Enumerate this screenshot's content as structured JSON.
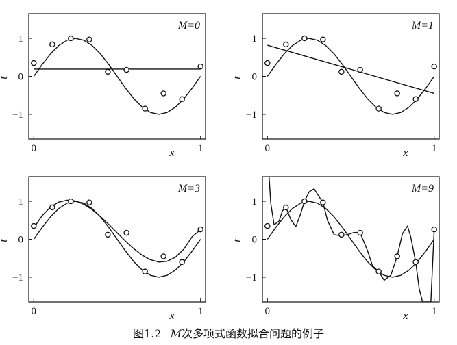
{
  "caption": {
    "label": "图",
    "number": "1.2",
    "var": "M",
    "text": "次多项式函数拟合问题的例子"
  },
  "chart_data": [
    {
      "type": "line",
      "panel_label": "M=0",
      "xlabel": "x",
      "ylabel": "t",
      "xlim": [
        -0.03,
        1.03
      ],
      "ylim": [
        -1.65,
        1.65
      ],
      "xticks": [
        0,
        1
      ],
      "yticks": [
        -1,
        0,
        1
      ],
      "grid": false,
      "points": {
        "x": [
          0,
          0.111,
          0.222,
          0.333,
          0.444,
          0.556,
          0.667,
          0.778,
          0.889,
          1.0
        ],
        "y": [
          0.35,
          0.84,
          1.0,
          0.97,
          0.12,
          0.17,
          -0.85,
          -0.45,
          -0.6,
          0.26
        ]
      },
      "series": [
        {
          "role": "true-curve",
          "x": [
            0,
            0.05,
            0.1,
            0.15,
            0.2,
            0.25,
            0.3,
            0.35,
            0.4,
            0.45,
            0.5,
            0.55,
            0.6,
            0.65,
            0.7,
            0.75,
            0.8,
            0.85,
            0.9,
            0.95,
            1.0
          ],
          "y": [
            0,
            0.31,
            0.59,
            0.81,
            0.95,
            1.0,
            0.95,
            0.81,
            0.59,
            0.31,
            0,
            -0.31,
            -0.59,
            -0.81,
            -0.95,
            -1.0,
            -0.95,
            -0.81,
            -0.59,
            -0.31,
            0
          ]
        },
        {
          "role": "fit",
          "x": [
            0,
            1.0
          ],
          "y": [
            0.19,
            0.19
          ]
        }
      ]
    },
    {
      "type": "line",
      "panel_label": "M=1",
      "xlabel": "x",
      "ylabel": "t",
      "xlim": [
        -0.03,
        1.03
      ],
      "ylim": [
        -1.65,
        1.65
      ],
      "xticks": [
        0,
        1
      ],
      "yticks": [
        -1,
        0,
        1
      ],
      "grid": false,
      "points": {
        "x": [
          0,
          0.111,
          0.222,
          0.333,
          0.444,
          0.556,
          0.667,
          0.778,
          0.889,
          1.0
        ],
        "y": [
          0.35,
          0.84,
          1.0,
          0.97,
          0.12,
          0.17,
          -0.85,
          -0.45,
          -0.6,
          0.26
        ]
      },
      "series": [
        {
          "role": "true-curve",
          "x": [
            0,
            0.05,
            0.1,
            0.15,
            0.2,
            0.25,
            0.3,
            0.35,
            0.4,
            0.45,
            0.5,
            0.55,
            0.6,
            0.65,
            0.7,
            0.75,
            0.8,
            0.85,
            0.9,
            0.95,
            1.0
          ],
          "y": [
            0,
            0.31,
            0.59,
            0.81,
            0.95,
            1.0,
            0.95,
            0.81,
            0.59,
            0.31,
            0,
            -0.31,
            -0.59,
            -0.81,
            -0.95,
            -1.0,
            -0.95,
            -0.81,
            -0.59,
            -0.31,
            0
          ]
        },
        {
          "role": "fit",
          "x": [
            0,
            1.0
          ],
          "y": [
            0.82,
            -0.45
          ]
        }
      ]
    },
    {
      "type": "line",
      "panel_label": "M=3",
      "xlabel": "x",
      "ylabel": "t",
      "xlim": [
        -0.03,
        1.03
      ],
      "ylim": [
        -1.65,
        1.65
      ],
      "xticks": [
        0,
        1
      ],
      "yticks": [
        -1,
        0,
        1
      ],
      "grid": false,
      "points": {
        "x": [
          0,
          0.111,
          0.222,
          0.333,
          0.444,
          0.556,
          0.667,
          0.778,
          0.889,
          1.0
        ],
        "y": [
          0.35,
          0.84,
          1.0,
          0.97,
          0.12,
          0.17,
          -0.85,
          -0.45,
          -0.6,
          0.26
        ]
      },
      "series": [
        {
          "role": "true-curve",
          "x": [
            0,
            0.05,
            0.1,
            0.15,
            0.2,
            0.25,
            0.3,
            0.35,
            0.4,
            0.45,
            0.5,
            0.55,
            0.6,
            0.65,
            0.7,
            0.75,
            0.8,
            0.85,
            0.9,
            0.95,
            1.0
          ],
          "y": [
            0,
            0.31,
            0.59,
            0.81,
            0.95,
            1.0,
            0.95,
            0.81,
            0.59,
            0.31,
            0,
            -0.31,
            -0.59,
            -0.81,
            -0.95,
            -1.0,
            -0.95,
            -0.81,
            -0.59,
            -0.31,
            0
          ]
        },
        {
          "role": "fit",
          "x": [
            0,
            0.05,
            0.1,
            0.15,
            0.2,
            0.25,
            0.3,
            0.35,
            0.4,
            0.45,
            0.5,
            0.55,
            0.6,
            0.65,
            0.7,
            0.75,
            0.8,
            0.85,
            0.9,
            0.95,
            1.0
          ],
          "y": [
            0.3,
            0.62,
            0.85,
            0.98,
            1.03,
            1.01,
            0.92,
            0.78,
            0.6,
            0.39,
            0.17,
            -0.05,
            -0.25,
            -0.42,
            -0.54,
            -0.6,
            -0.58,
            -0.47,
            -0.26,
            0.07,
            0.25
          ]
        }
      ]
    },
    {
      "type": "line",
      "panel_label": "M=9",
      "xlabel": "x",
      "ylabel": "t",
      "xlim": [
        -0.03,
        1.03
      ],
      "ylim": [
        -1.65,
        1.65
      ],
      "xticks": [
        0,
        1
      ],
      "yticks": [
        -1,
        0,
        1
      ],
      "grid": false,
      "points": {
        "x": [
          0,
          0.111,
          0.222,
          0.333,
          0.444,
          0.556,
          0.667,
          0.778,
          0.889,
          1.0
        ],
        "y": [
          0.35,
          0.84,
          1.0,
          0.97,
          0.12,
          0.17,
          -0.85,
          -0.45,
          -0.6,
          0.26
        ]
      },
      "series": [
        {
          "role": "true-curve",
          "x": [
            0,
            0.05,
            0.1,
            0.15,
            0.2,
            0.25,
            0.3,
            0.35,
            0.4,
            0.45,
            0.5,
            0.55,
            0.6,
            0.65,
            0.7,
            0.75,
            0.8,
            0.85,
            0.9,
            0.95,
            1.0
          ],
          "y": [
            0,
            0.31,
            0.59,
            0.81,
            0.95,
            1.0,
            0.95,
            0.81,
            0.59,
            0.31,
            0,
            -0.31,
            -0.59,
            -0.81,
            -0.95,
            -1.0,
            -0.95,
            -0.81,
            -0.59,
            -0.31,
            0
          ]
        },
        {
          "role": "fit",
          "x": [
            0.01,
            0.02,
            0.04,
            0.07,
            0.09,
            0.111,
            0.14,
            0.17,
            0.2,
            0.222,
            0.25,
            0.28,
            0.31,
            0.333,
            0.36,
            0.4,
            0.44,
            0.48,
            0.52,
            0.556,
            0.6,
            0.63,
            0.667,
            0.7,
            0.74,
            0.778,
            0.81,
            0.84,
            0.86,
            0.889,
            0.91,
            0.93,
            0.95,
            0.98,
            1.0
          ],
          "y": [
            1.65,
            0.95,
            0.38,
            0.48,
            0.75,
            0.84,
            0.52,
            0.33,
            0.68,
            1.0,
            1.25,
            1.33,
            1.12,
            0.97,
            0.5,
            0.12,
            0.09,
            0.12,
            0.18,
            0.17,
            -0.3,
            -0.7,
            -0.85,
            -1.08,
            -0.95,
            -0.45,
            0.15,
            0.35,
            0.05,
            -0.6,
            -1.3,
            -1.65,
            -1.65,
            -1.65,
            0.26
          ]
        }
      ]
    }
  ]
}
